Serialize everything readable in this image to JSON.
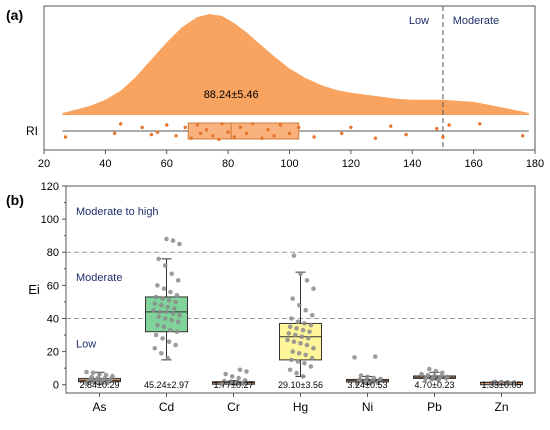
{
  "chart_data": [
    {
      "type": "violin-box",
      "panel_label": "(a)",
      "category": "RI",
      "xlim": [
        20,
        180
      ],
      "x_ticks": [
        "20",
        "40",
        "60",
        "80",
        "100",
        "120",
        "140",
        "160",
        "180"
      ],
      "threshold": 150,
      "zone_labels": {
        "left": "Low",
        "right": "Moderate"
      },
      "annotation": "88.24±5.46",
      "box": {
        "q1": 67,
        "median": 81,
        "q3": 103,
        "whisker_low": 26,
        "whisker_high": 178
      },
      "density": {
        "x": [
          26,
          30,
          35,
          40,
          45,
          50,
          55,
          60,
          65,
          70,
          74,
          78,
          82,
          86,
          90,
          95,
          100,
          105,
          110,
          115,
          120,
          125,
          130,
          135,
          140,
          145,
          150,
          155,
          160,
          165,
          170,
          175,
          178
        ],
        "y": [
          0.02,
          0.05,
          0.09,
          0.15,
          0.24,
          0.38,
          0.55,
          0.72,
          0.87,
          0.97,
          1.0,
          0.98,
          0.91,
          0.82,
          0.71,
          0.58,
          0.46,
          0.37,
          0.3,
          0.25,
          0.22,
          0.2,
          0.18,
          0.16,
          0.15,
          0.15,
          0.15,
          0.14,
          0.13,
          0.1,
          0.07,
          0.04,
          0.02
        ]
      },
      "points": [
        {
          "x": 27,
          "j": 0.5
        },
        {
          "x": 43,
          "j": 0.2
        },
        {
          "x": 45,
          "j": -0.6
        },
        {
          "x": 52,
          "j": -0.3
        },
        {
          "x": 55,
          "j": 0.3
        },
        {
          "x": 57,
          "j": 0.1
        },
        {
          "x": 60,
          "j": -0.5
        },
        {
          "x": 63,
          "j": 0.4
        },
        {
          "x": 66,
          "j": -0.3
        },
        {
          "x": 68,
          "j": 0.6
        },
        {
          "x": 70,
          "j": -0.5
        },
        {
          "x": 71,
          "j": 0.2
        },
        {
          "x": 73,
          "j": -0.1
        },
        {
          "x": 75,
          "j": 0.4
        },
        {
          "x": 77,
          "j": 0.7
        },
        {
          "x": 78,
          "j": -0.6
        },
        {
          "x": 80,
          "j": 0.1
        },
        {
          "x": 82,
          "j": 0.5
        },
        {
          "x": 84,
          "j": -0.3
        },
        {
          "x": 86,
          "j": 0.2
        },
        {
          "x": 88,
          "j": -0.6
        },
        {
          "x": 91,
          "j": 0.6
        },
        {
          "x": 93,
          "j": -0.1
        },
        {
          "x": 95,
          "j": 0.4
        },
        {
          "x": 97,
          "j": -0.5
        },
        {
          "x": 100,
          "j": 0.2
        },
        {
          "x": 103,
          "j": -0.3
        },
        {
          "x": 108,
          "j": 0.5
        },
        {
          "x": 117,
          "j": 0.2
        },
        {
          "x": 120,
          "j": -0.3
        },
        {
          "x": 128,
          "j": 0.6
        },
        {
          "x": 133,
          "j": -0.4
        },
        {
          "x": 138,
          "j": 0.3
        },
        {
          "x": 148,
          "j": -0.2
        },
        {
          "x": 150,
          "j": 0.5
        },
        {
          "x": 152,
          "j": -0.5
        },
        {
          "x": 162,
          "j": -0.6
        },
        {
          "x": 176,
          "j": 0.4
        }
      ],
      "colors": {
        "fill": "#f8a460",
        "box_fill": "#f9b27e",
        "box_edge": "#d07a38",
        "point": "#e8742a"
      }
    },
    {
      "type": "box",
      "panel_label": "(b)",
      "ylabel": "Ei",
      "ylim": [
        -5,
        120
      ],
      "y_ticks": [
        0,
        20,
        40,
        60,
        80,
        100,
        120
      ],
      "thresholds": [
        40,
        80
      ],
      "zone_labels": [
        {
          "text": "Low",
          "y": 25
        },
        {
          "text": "Moderate",
          "y": 65
        },
        {
          "text": "Moderate to high",
          "y": 105
        }
      ],
      "categories": [
        "As",
        "Cd",
        "Cr",
        "Hg",
        "Ni",
        "Pb",
        "Zn"
      ],
      "annotations": [
        "2.84±0.29",
        "45.24±2.97",
        "1.77±0.27",
        "29.10±3.56",
        "3.24±0.53",
        "4.70±0.23",
        "1.33±0.05"
      ],
      "boxes": [
        {
          "min": 0.5,
          "q1": 1.8,
          "median": 2.6,
          "q3": 3.8,
          "max": 7.5,
          "color": "#e8a070",
          "points": [
            0.6,
            1.0,
            1.2,
            1.5,
            1.8,
            2.0,
            2.2,
            2.4,
            2.6,
            2.8,
            3.0,
            3.1,
            3.4,
            3.6,
            3.8,
            4.2,
            4.6,
            5.2,
            5.8,
            6.4,
            7.2,
            7.6
          ]
        },
        {
          "min": 15,
          "q1": 32,
          "median": 44,
          "q3": 53,
          "max": 76,
          "color": "#7fd39b",
          "points": [
            16,
            19,
            22,
            24,
            26,
            28,
            30,
            32,
            33,
            35,
            36,
            38,
            39,
            40,
            41,
            42,
            43,
            44,
            44,
            45,
            46,
            47,
            48,
            49,
            50,
            51,
            52,
            53,
            54,
            56,
            58,
            60,
            63,
            67,
            72,
            76,
            85,
            87,
            88
          ]
        },
        {
          "min": 0,
          "q1": 0.8,
          "median": 1.3,
          "q3": 1.8,
          "max": 2.5,
          "color": "#e8a070",
          "points": [
            0.3,
            0.6,
            0.8,
            1.0,
            1.2,
            1.3,
            1.5,
            1.8,
            2.2,
            2.6,
            4.0,
            5.0,
            6.5,
            8.0,
            9.0
          ]
        },
        {
          "min": 5,
          "q1": 15,
          "median": 29,
          "q3": 37,
          "max": 68,
          "color": "#fff59a",
          "points": [
            5,
            7,
            9,
            11,
            13,
            14,
            15,
            16,
            18,
            19,
            20,
            22,
            24,
            25,
            26,
            27,
            28,
            29,
            30,
            31,
            32,
            33,
            34,
            35,
            36,
            37,
            38,
            40,
            42,
            45,
            48,
            52,
            58,
            63,
            67,
            78
          ]
        },
        {
          "min": 0.5,
          "q1": 1.8,
          "median": 2.6,
          "q3": 3.2,
          "max": 5.0,
          "color": "#e8a070",
          "points": [
            0.6,
            1.0,
            1.4,
            1.8,
            2.0,
            2.4,
            2.6,
            2.9,
            3.1,
            3.5,
            4.0,
            4.8,
            5.5,
            16.5,
            17.0
          ]
        },
        {
          "min": 3,
          "q1": 3.8,
          "median": 4.5,
          "q3": 5.3,
          "max": 7.5,
          "color": "#e8a070",
          "points": [
            2.8,
            3.2,
            3.5,
            3.8,
            4.0,
            4.3,
            4.5,
            4.7,
            5.0,
            5.3,
            5.8,
            6.4,
            7.2,
            8.2,
            9.5
          ]
        },
        {
          "min": 1.0,
          "q1": 1.2,
          "median": 1.33,
          "q3": 1.5,
          "max": 1.7,
          "color": "#e8a070",
          "points": [
            1.0,
            1.1,
            1.2,
            1.3,
            1.35,
            1.4,
            1.5,
            1.6,
            1.7
          ]
        }
      ],
      "colors": {
        "point": "#8c8c8c",
        "threshold": "#9a9a9a",
        "zone_text": "#1f2f6b"
      }
    }
  ]
}
